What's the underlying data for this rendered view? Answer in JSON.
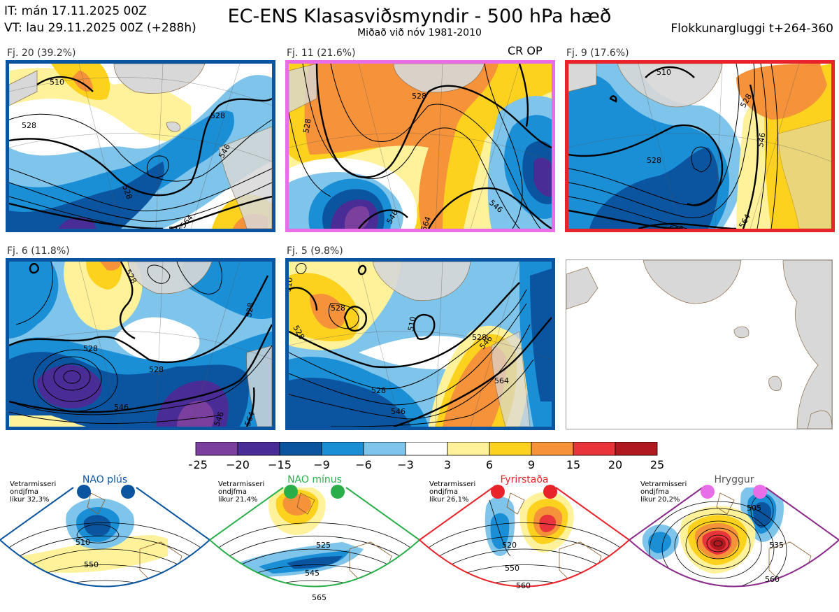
{
  "header": {
    "initial_time": "IT: mán 17.11.2025 00Z",
    "valid_time": "VT: lau 29.11.2025 00Z  (+288h)",
    "title": "EC-ENS Klasasviðsmyndir - 500 hPa hæð",
    "subtitle": "Miðað við nóv 1981-2010",
    "window": "Flokkunargluggi t+264-360"
  },
  "clusters": [
    {
      "label": "Fj. 20 (39.2%)",
      "regime": "NAO plús",
      "frame_color": "#0b55a0",
      "contour_labels": [
        "510",
        "528",
        "528",
        "546",
        "546",
        "564",
        "528"
      ]
    },
    {
      "label": "Fj. 11 (21.6%)",
      "regime": "Hryggur",
      "frame_color": "#e86ee8",
      "contour_labels": [
        "528",
        "528",
        "546",
        "564",
        "546",
        "564"
      ]
    },
    {
      "label": "Fj. 9 (17.6%)",
      "regime": "Fyrirstaða",
      "frame_color": "#e8232a",
      "contour_labels": [
        "510",
        "528",
        "528",
        "546",
        "546",
        "564"
      ]
    },
    {
      "label": "Fj. 6 (11.8%)",
      "regime": "NAO plús",
      "frame_color": "#0b55a0",
      "contour_labels": [
        "528",
        "528",
        "528",
        "528",
        "546",
        "546",
        "564"
      ]
    },
    {
      "label": "Fj. 5 (9.8%)",
      "regime": "NAO plús",
      "frame_color": "#0b55a0",
      "contour_labels": [
        "510",
        "528",
        "510",
        "528",
        "528",
        "546",
        "546",
        "564",
        "564"
      ]
    }
  ],
  "control_marker": "CR OP",
  "colorbar": {
    "ticks": [
      "−25",
      "−20",
      "−15",
      "−9",
      "−6",
      "−3",
      "3",
      "6",
      "9",
      "15",
      "20",
      "25"
    ],
    "colors": [
      "#7b3f9e",
      "#4a2c96",
      "#0b55a0",
      "#1a8fd6",
      "#7fc4ea",
      "#ffffff",
      "#fff29a",
      "#fdd21e",
      "#f5923a",
      "#e8343a",
      "#b01a1f"
    ]
  },
  "regimes": [
    {
      "name": "NAO plús",
      "stat_lines": [
        "Vetrarmisseri",
        "ondjfma",
        "líkur 32,3%"
      ],
      "color": "#0b55a0",
      "labels": [
        "510",
        "550"
      ]
    },
    {
      "name": "NAO mínus",
      "stat_lines": [
        "Vetrarmisseri",
        "ondjfma",
        "líkur 21,4%"
      ],
      "color": "#2aae4a",
      "labels": [
        "525",
        "545",
        "565"
      ]
    },
    {
      "name": "Fyrirstaða",
      "stat_lines": [
        "Vetrarmisseri",
        "ondjfma",
        "líkur 26,1%"
      ],
      "color": "#e8232a",
      "labels": [
        "520",
        "550",
        "560"
      ]
    },
    {
      "name": "Hryggur",
      "stat_lines": [
        "Vetrarmisseri",
        "ondjfma",
        "líkur 20,2%"
      ],
      "color": "#e86ee8",
      "labels": [
        "505",
        "535",
        "560"
      ]
    }
  ]
}
